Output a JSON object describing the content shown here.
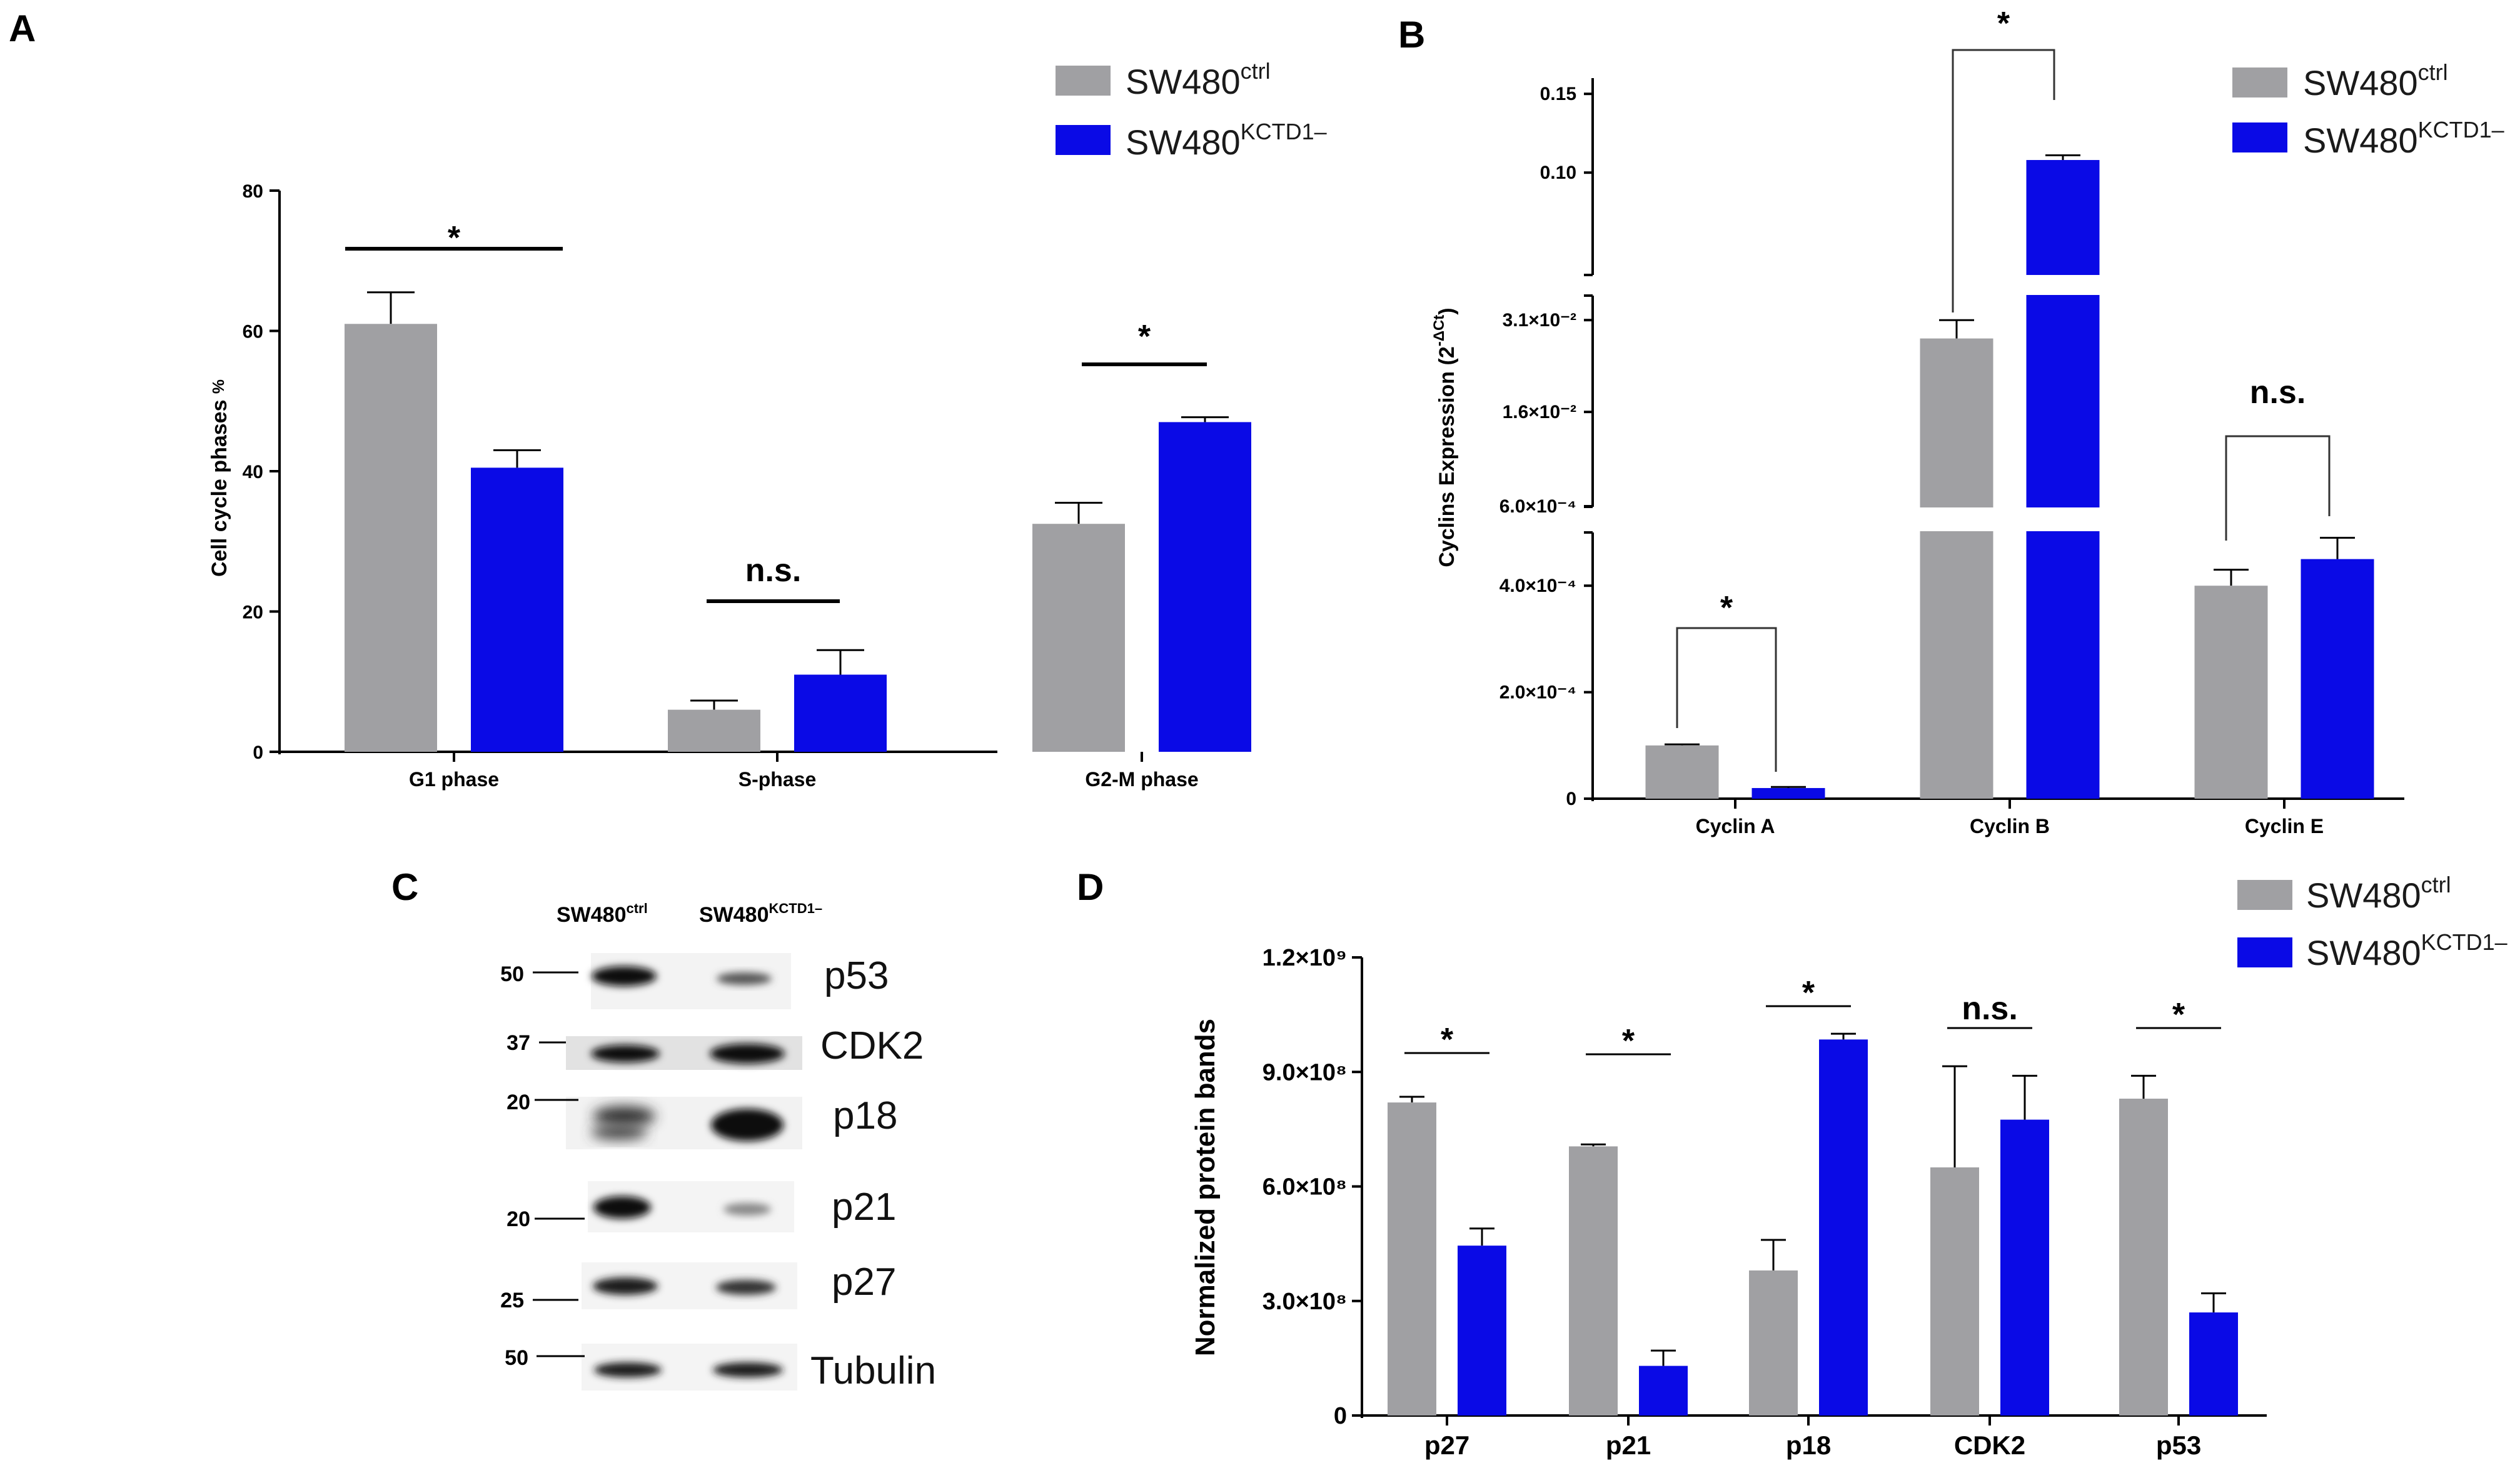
{
  "colors": {
    "ctrl": "#a0a0a3",
    "kd": "#0a0ae6",
    "axis": "#000000"
  },
  "legend": {
    "ctrl_base": "SW480",
    "ctrl_sup": "ctrl",
    "kd_base": "SW480",
    "kd_sup": "KCTD1–"
  },
  "panels": {
    "a": "A",
    "b": "B",
    "c": "C",
    "d": "D"
  },
  "chart_data": [
    {
      "id": "A",
      "type": "bar",
      "title": "",
      "ylabel": "Cell cycle phases",
      "ylabel_unit": "%",
      "ylim": [
        0,
        80
      ],
      "yticks": [
        0,
        20,
        40,
        60,
        80
      ],
      "categories": [
        "G1 phase",
        "S-phase",
        "G2-M phase"
      ],
      "series": [
        {
          "name": "SW480ctrl",
          "values": [
            61,
            6,
            32.5
          ],
          "errors": [
            4.5,
            1.3,
            3
          ]
        },
        {
          "name": "SW480KCTD1–",
          "values": [
            40.5,
            11,
            47
          ],
          "errors": [
            2.5,
            3.5,
            0.7
          ]
        }
      ],
      "significance": [
        "*",
        "n.s.",
        "*"
      ]
    },
    {
      "id": "B",
      "type": "bar",
      "title": "",
      "ylabel": "Cyclins Expression",
      "ylabel_unit": "(2",
      "ylabel_sup": "-ΔCt",
      "ylabel_close": ")",
      "broken_axis": true,
      "segments": [
        {
          "ylim": [
            0,
            0.0005
          ],
          "ticks": [
            "0",
            "2.0×10⁻⁴",
            "4.0×10⁻⁴"
          ],
          "tick_values": [
            0,
            0.0002,
            0.0004
          ]
        },
        {
          "ylim": [
            0.0005,
            0.035
          ],
          "ticks": [
            "6.0×10⁻⁴",
            "1.6×10⁻²",
            "3.1×10⁻²"
          ],
          "tick_values": [
            0.0006,
            0.016,
            0.031
          ]
        },
        {
          "ylim": [
            0.035,
            0.16
          ],
          "ticks": [
            "0.10",
            "0.15"
          ],
          "tick_values": [
            0.1,
            0.15
          ]
        }
      ],
      "categories": [
        "Cyclin A",
        "Cyclin B",
        "Cyclin E"
      ],
      "series": [
        {
          "name": "SW480ctrl",
          "values": [
            0.0001,
            0.028,
            0.0004
          ],
          "errors": [
            2e-06,
            0.003,
            3e-05
          ]
        },
        {
          "name": "SW480KCTD1–",
          "values": [
            2e-05,
            0.108,
            0.00045
          ],
          "errors": [
            2e-06,
            0.003,
            4e-05
          ]
        }
      ],
      "significance": [
        "*",
        "*",
        "n.s."
      ]
    },
    {
      "id": "D",
      "type": "bar",
      "title": "",
      "ylabel": "Normalized protein bands",
      "ylim": [
        0,
        1200000000
      ],
      "yticks": [
        "0",
        "3.0×10⁸",
        "6.0×10⁸",
        "9.0×10⁸",
        "1.2×10⁹"
      ],
      "ytick_values": [
        0,
        300000000,
        600000000,
        900000000,
        1200000000
      ],
      "categories": [
        "p27",
        "p21",
        "p18",
        "CDK2",
        "p53"
      ],
      "series": [
        {
          "name": "SW480ctrl",
          "values": [
            820000000,
            705000000,
            380000000,
            650000000,
            830000000
          ],
          "errors": [
            15000000,
            5000000,
            80000000,
            265000000,
            60000000
          ]
        },
        {
          "name": "SW480KCTD1–",
          "values": [
            445000000,
            130000000,
            985000000,
            775000000,
            270000000
          ],
          "errors": [
            45000000,
            40000000,
            15000000,
            115000000,
            50000000
          ]
        }
      ],
      "significance": [
        "*",
        "*",
        "*",
        "n.s.",
        "*"
      ]
    }
  ],
  "western_blot": {
    "header_ctrl_base": "SW480",
    "header_ctrl_sup": "ctrl",
    "header_kd_base": "SW480",
    "header_kd_sup": "KCTD1–",
    "rows": [
      {
        "marker": "50",
        "protein": "p53"
      },
      {
        "marker": "37",
        "protein": "CDK2"
      },
      {
        "marker": "20",
        "protein": "p18"
      },
      {
        "marker": "20",
        "protein": "p21"
      },
      {
        "marker": "25",
        "protein": "p27"
      },
      {
        "marker": "50",
        "protein": "Tubulin"
      }
    ]
  }
}
